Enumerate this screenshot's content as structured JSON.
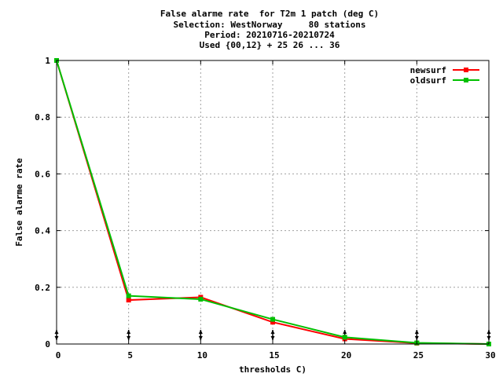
{
  "chart_data": {
    "type": "line",
    "title_lines": [
      "False alarme rate  for T2m 1 patch (deg C)",
      "Selection: WestNorway     80 stations",
      "Period: 20210716-20210724",
      "Used {00,12} + 25 26 ... 36"
    ],
    "xlabel": "thresholds C)",
    "ylabel": "False alarme rate",
    "xlim": [
      0,
      30
    ],
    "ylim": [
      0,
      1
    ],
    "x_ticks": [
      "0",
      "5",
      "10",
      "15",
      "20",
      "25",
      "30"
    ],
    "y_ticks": [
      "0",
      "0.2",
      "0.4",
      "0.6",
      "0.8",
      "1"
    ],
    "grid": true,
    "legend_position": "top-right",
    "x": [
      0,
      5,
      10,
      15,
      20,
      25,
      30
    ],
    "series": [
      {
        "name": "newsurf",
        "color": "#ff0000",
        "values": [
          1.0,
          0.155,
          0.165,
          0.077,
          0.018,
          0.003,
          0.0
        ]
      },
      {
        "name": "oldsurf",
        "color": "#00c000",
        "values": [
          1.0,
          0.17,
          0.158,
          0.087,
          0.024,
          0.004,
          0.0
        ]
      }
    ],
    "threshold_markers": [
      0,
      5,
      10,
      15,
      20,
      25,
      30
    ]
  }
}
